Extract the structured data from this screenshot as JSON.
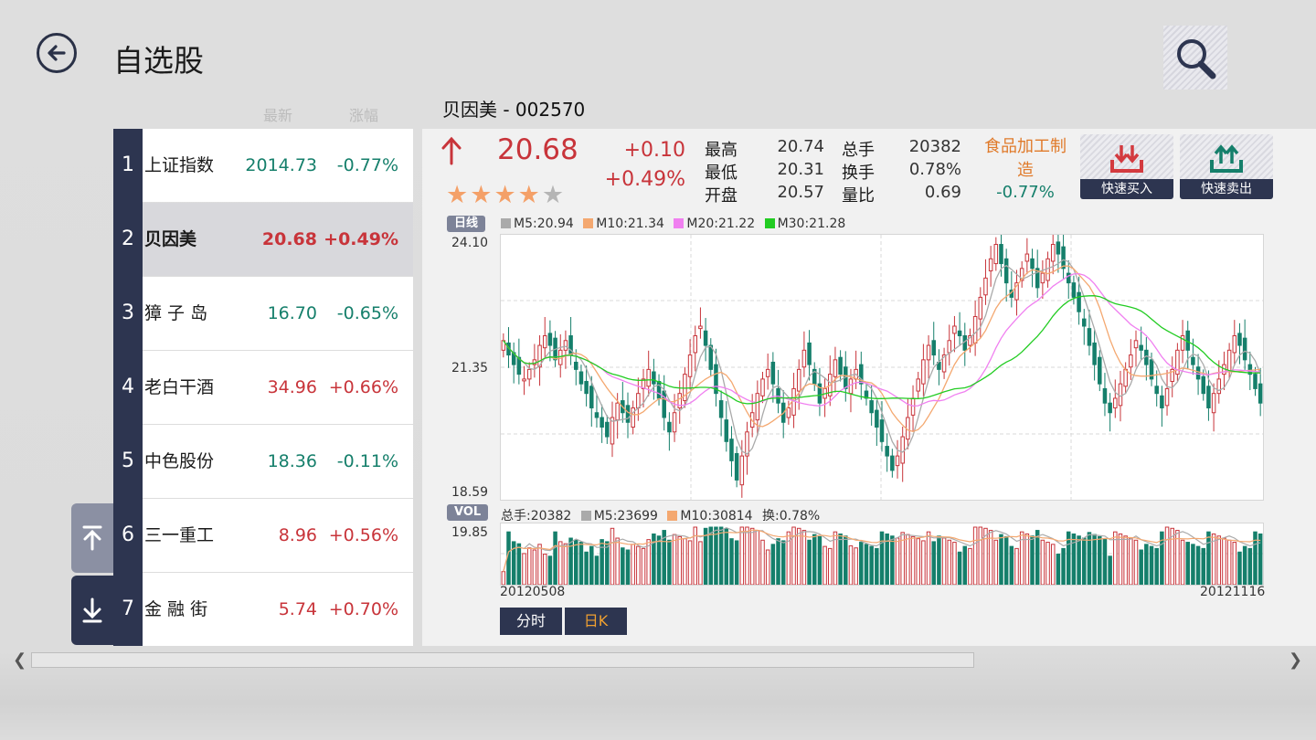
{
  "header": {
    "title": "自选股",
    "back_icon": "back-arrow-icon",
    "search_icon": "search-icon"
  },
  "list_columns": {
    "latest": "最新",
    "change": "涨幅"
  },
  "watchlist": [
    {
      "index": "1",
      "name": "上证指数",
      "price": "2014.73",
      "change": "-0.77%",
      "direction": "down"
    },
    {
      "index": "2",
      "name": "贝因美",
      "price": "20.68",
      "change": "+0.49%",
      "direction": "up",
      "selected": true
    },
    {
      "index": "3",
      "name": "獐 子 岛",
      "price": "16.70",
      "change": "-0.65%",
      "direction": "down"
    },
    {
      "index": "4",
      "name": "老白干酒",
      "price": "34.96",
      "change": "+0.66%",
      "direction": "up"
    },
    {
      "index": "5",
      "name": "中色股份",
      "price": "18.36",
      "change": "-0.11%",
      "direction": "down"
    },
    {
      "index": "6",
      "name": "三一重工",
      "price": "8.96",
      "change": "+0.56%",
      "direction": "up"
    },
    {
      "index": "7",
      "name": "金 融 街",
      "price": "5.74",
      "change": "+0.70%",
      "direction": "up"
    }
  ],
  "stock": {
    "header": "贝因美 - 002570",
    "last_price": "20.68",
    "change_abs": "+0.10",
    "change_pct": "+0.49%",
    "rating": 4,
    "rating_max": 5,
    "stats": {
      "high_label": "最高",
      "high": "20.74",
      "low_label": "最低",
      "low": "20.31",
      "open_label": "开盘",
      "open": "20.57",
      "volume_label": "总手",
      "volume": "20382",
      "turnover_label": "换手",
      "turnover": "0.78%",
      "volratio_label": "量比",
      "volratio": "0.69"
    },
    "industry": "食品加工制造",
    "industry_change": "-0.77%"
  },
  "actions": {
    "buy_label": "快速买入",
    "sell_label": "快速卖出"
  },
  "chart_labels": {
    "day_tag": "日线",
    "ma5": "M5:20.94",
    "ma10": "M10:21.34",
    "ma20": "M20:21.22",
    "ma30": "M30:21.28",
    "vol_tag": "VOL",
    "vol_total": "总手:20382",
    "vol_m5": "M5:23699",
    "vol_m10": "M10:30814",
    "vol_turnover": "换:0.78%"
  },
  "colors": {
    "up": "#c8343a",
    "down": "#157f6b",
    "ma5": "#aaaaaa",
    "ma10": "#f4a870",
    "ma20": "#f080f0",
    "ma30": "#22cc22",
    "nav": "#2d3550"
  },
  "tabs": {
    "intraday": "分时",
    "daily": "日K"
  },
  "chart_data": {
    "type": "candlestick",
    "y_ticks": [
      "24.10",
      "21.35",
      "18.59"
    ],
    "ylim": [
      18.59,
      24.1
    ],
    "volume_max": "19.85",
    "date_start": "20120508",
    "date_end": "20121116",
    "close": [
      21.9,
      21.6,
      21.4,
      21.2,
      21.1,
      21.3,
      21.5,
      21.8,
      22.0,
      21.8,
      21.5,
      21.7,
      21.9,
      21.6,
      21.3,
      21.0,
      20.8,
      20.5,
      20.3,
      20.1,
      19.9,
      20.3,
      20.6,
      20.4,
      20.2,
      20.5,
      20.8,
      21.1,
      21.3,
      21.0,
      20.7,
      20.3,
      20.0,
      20.4,
      20.8,
      21.2,
      21.6,
      22.0,
      22.2,
      21.8,
      21.3,
      20.8,
      20.3,
      19.8,
      19.4,
      19.0,
      19.5,
      20.0,
      20.4,
      20.8,
      21.1,
      21.3,
      21.0,
      20.6,
      20.2,
      20.5,
      20.9,
      21.3,
      21.7,
      21.4,
      21.0,
      20.6,
      20.9,
      21.2,
      21.5,
      21.2,
      20.9,
      21.1,
      21.3,
      21.0,
      20.7,
      20.4,
      20.1,
      19.8,
      19.5,
      19.2,
      19.5,
      19.9,
      20.3,
      20.7,
      21.1,
      21.5,
      21.8,
      21.6,
      21.3,
      21.6,
      21.9,
      22.2,
      22.0,
      21.7,
      22.0,
      22.4,
      22.8,
      23.2,
      23.6,
      23.9,
      23.5,
      23.1,
      22.8,
      23.1,
      23.4,
      23.7,
      23.4,
      23.0,
      23.3,
      23.6,
      23.9,
      23.7,
      23.4,
      23.1,
      22.8,
      22.5,
      22.2,
      21.8,
      21.4,
      21.0,
      20.6,
      20.4,
      20.7,
      21.0,
      21.3,
      21.6,
      21.9,
      21.7,
      21.4,
      21.1,
      20.8,
      20.5,
      20.9,
      21.3,
      21.7,
      22.0,
      21.7,
      21.4,
      21.1,
      20.8,
      20.5,
      20.8,
      21.1,
      21.4,
      21.7,
      22.0,
      21.8,
      21.5,
      21.2,
      20.9,
      20.6
    ]
  }
}
